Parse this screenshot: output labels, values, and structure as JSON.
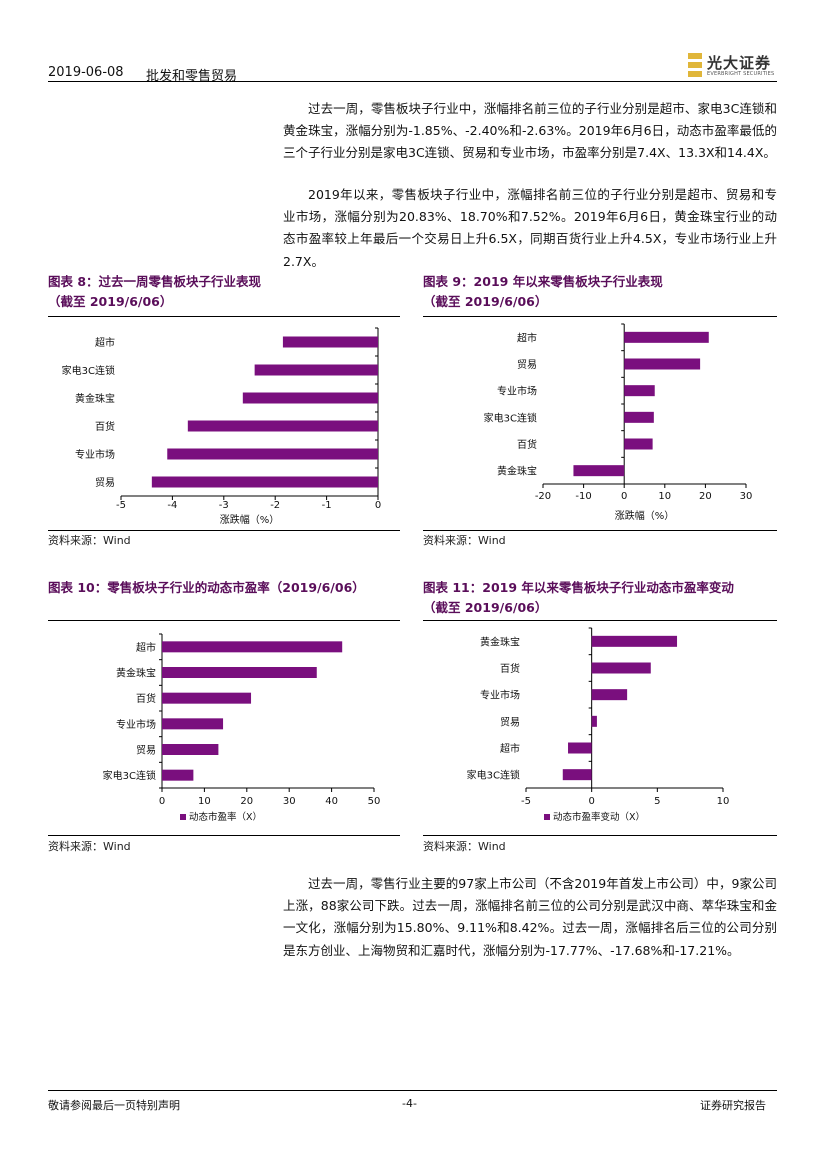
{
  "header": {
    "date": "2019-06-08",
    "sector": "批发和零售贸易",
    "brand_name": "光大证券",
    "brand_en": "EVERBRIGHT SECURITIES"
  },
  "paragraphs": {
    "p1": "过去一周，零售板块子行业中，涨幅排名前三位的子行业分别是超市、家电3C连锁和黄金珠宝，涨幅分别为-1.85%、-2.40%和-2.63%。2019年6月6日，动态市盈率最低的三个子行业分别是家电3C连锁、贸易和专业市场，市盈率分别是7.4X、13.3X和14.4X。",
    "p2": "2019年以来，零售板块子行业中，涨幅排名前三位的子行业分别是超市、贸易和专业市场，涨幅分别为20.83%、18.70%和7.52%。2019年6月6日，黄金珠宝行业的动态市盈率较上年最后一个交易日上升6.5X，同期百货行业上升4.5X，专业市场行业上升2.7X。",
    "p3": "过去一周，零售行业主要的97家上市公司（不含2019年首发上市公司）中，9家公司上涨，88家公司下跌。过去一周，涨幅排名前三位的公司分别是武汉中商、萃华珠宝和金一文化，涨幅分别为15.80%、9.11%和8.42%。过去一周，涨幅排名后三位的公司分别是东方创业、上海物贸和汇嘉时代，涨幅分别为-17.77%、-17.68%和-17.21%。"
  },
  "figures": {
    "fig8": {
      "title_line1": "图表 8：过去一周零售板块子行业表现",
      "title_line2": "（截至 2019/6/06）",
      "source": "资料来源：Wind"
    },
    "fig9": {
      "title_line1": "图表 9：2019 年以来零售板块子行业表现",
      "title_line2": "（截至 2019/6/06）",
      "source": "资料来源：Wind"
    },
    "fig10": {
      "title_line1": "图表 10：零售板块子行业的动态市盈率（2019/6/06）",
      "source": "资料来源：Wind"
    },
    "fig11": {
      "title_line1": "图表 11：2019 年以来零售板块子行业动态市盈率变动",
      "title_line2": "（截至 2019/6/06）",
      "source": "资料来源：Wind"
    }
  },
  "chart_data": [
    {
      "id": "fig8",
      "type": "bar",
      "orientation": "horizontal",
      "categories": [
        "超市",
        "家电3C连锁",
        "黄金珠宝",
        "百货",
        "专业市场",
        "贸易"
      ],
      "values": [
        -1.85,
        -2.4,
        -2.63,
        -3.7,
        -4.1,
        -4.4
      ],
      "xlabel": "涨跌幅（%）",
      "xlim": [
        -5,
        0
      ],
      "ticks": [
        "-5",
        "-4",
        "-3",
        "-2",
        "-1",
        "0"
      ],
      "color": "#7a0f7e",
      "legend": "none"
    },
    {
      "id": "fig9",
      "type": "bar",
      "orientation": "horizontal",
      "categories": [
        "超市",
        "贸易",
        "专业市场",
        "家电3C连锁",
        "百货",
        "黄金珠宝"
      ],
      "values": [
        20.83,
        18.7,
        7.52,
        7.3,
        7.0,
        -12.5
      ],
      "xlabel": "涨跌幅（%）",
      "xlim": [
        -20,
        30
      ],
      "ticks": [
        "-20",
        "-10",
        "0",
        "10",
        "20",
        "30"
      ],
      "color": "#7a0f7e",
      "legend": "none"
    },
    {
      "id": "fig10",
      "type": "bar",
      "orientation": "horizontal",
      "categories": [
        "超市",
        "黄金珠宝",
        "百货",
        "专业市场",
        "贸易",
        "家电3C连锁"
      ],
      "values": [
        42.5,
        36.5,
        21.0,
        14.4,
        13.3,
        7.4
      ],
      "xlabel": "",
      "xlim": [
        0,
        50
      ],
      "ticks": [
        "0",
        "10",
        "20",
        "30",
        "40",
        "50"
      ],
      "legend": "动态市盈率（X）",
      "legend_position": "bottom-left",
      "color": "#7a0f7e"
    },
    {
      "id": "fig11",
      "type": "bar",
      "orientation": "horizontal",
      "categories": [
        "黄金珠宝",
        "百货",
        "专业市场",
        "贸易",
        "超市",
        "家电3C连锁"
      ],
      "values": [
        6.5,
        4.5,
        2.7,
        0.4,
        -1.8,
        -2.2
      ],
      "xlabel": "",
      "xlim": [
        -5,
        10
      ],
      "ticks": [
        "-5",
        "0",
        "5",
        "10"
      ],
      "legend": "动态市盈率变动（X）",
      "legend_position": "bottom-left",
      "color": "#7a0f7e"
    }
  ],
  "footer": {
    "left": "敬请参阅最后一页特别声明",
    "page": "-4-",
    "right": "证券研究报告"
  }
}
